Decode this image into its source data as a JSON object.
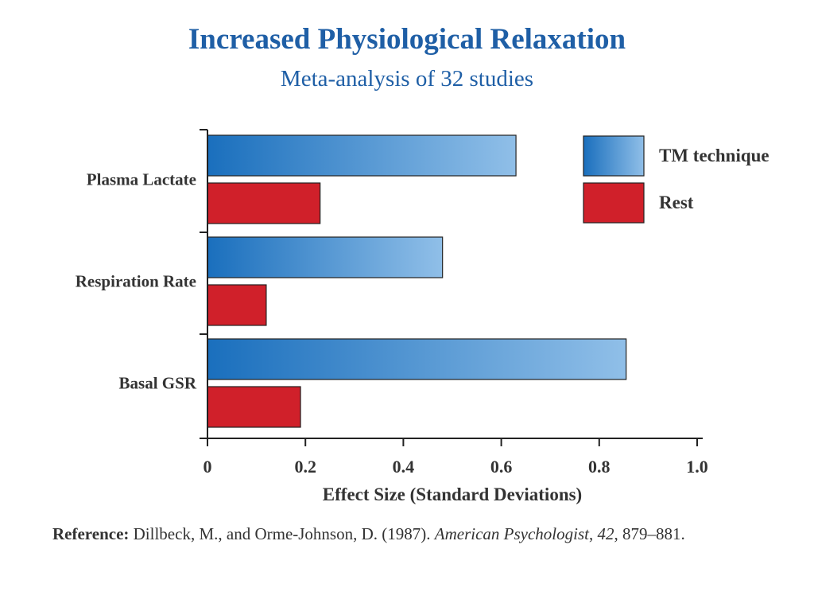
{
  "chart_data": {
    "type": "bar",
    "orientation": "horizontal",
    "title": "Increased Physiological Relaxation",
    "subtitle": "Meta-analysis of 32 studies",
    "categories": [
      "Plasma Lactate",
      "Respiration Rate",
      "Basal GSR"
    ],
    "series": [
      {
        "name": "TM technique",
        "values": [
          0.63,
          0.48,
          0.855
        ],
        "color": "#1a6fbd",
        "color_light": "#90bfe8"
      },
      {
        "name": "Rest",
        "values": [
          0.23,
          0.12,
          0.19
        ],
        "color": "#d0202a"
      }
    ],
    "xlabel": "Effect Size (Standard Deviations)",
    "xlim": [
      0,
      1.0
    ],
    "xticks": [
      "0",
      "0.2",
      "0.4",
      "0.6",
      "0.8",
      "1.0"
    ],
    "grid": false,
    "legend_position": "top-right"
  },
  "reference": {
    "label": "Reference:",
    "authors": " Dillbeck, M., and Orme-Johnson, D. (1987). ",
    "journal": "American Psychologist",
    "sep1": ", ",
    "volume": "42",
    "pages": ", 879–881."
  }
}
